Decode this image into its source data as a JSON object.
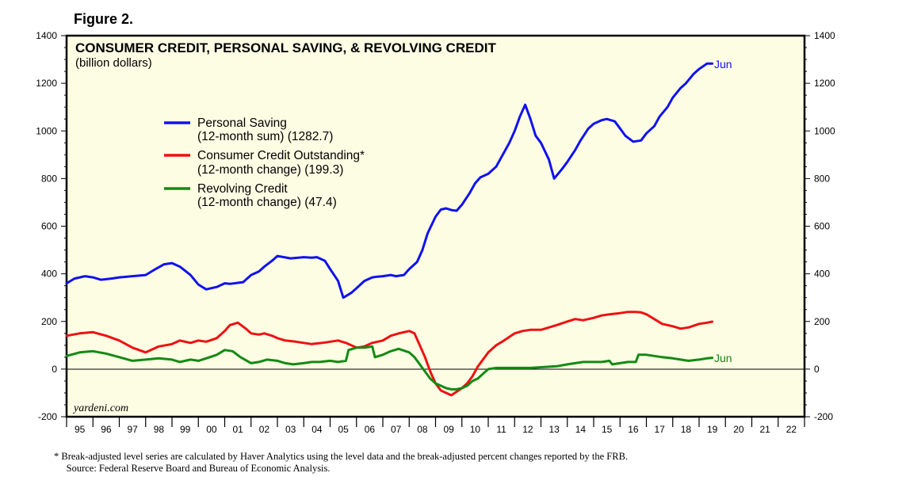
{
  "figure_label": "Figure 2.",
  "footnotes": [
    "*   Break-adjusted level series are calculated by Haver Analytics using the level data and the break-adjusted percent changes reported by the FRB.",
    "     Source: Federal Reserve Board and Bureau of Economic Analysis."
  ],
  "watermark": "yardeni.com",
  "colors": {
    "plot_bg": "#fdfde4",
    "saving": "#1111ee",
    "credit": "#ee1111",
    "revolving": "#138a13"
  },
  "chart_data": {
    "type": "line",
    "title": "CONSUMER CREDIT, PERSONAL SAVING, & REVOLVING CREDIT",
    "subtitle": "(billion dollars)",
    "xlabel": "",
    "ylabel": "",
    "xlim": [
      1995,
      2023
    ],
    "ylim": [
      -200,
      1400
    ],
    "y_ticks": [
      -200,
      0,
      200,
      400,
      600,
      800,
      1000,
      1200,
      1400
    ],
    "x_tick_labels": [
      "95",
      "96",
      "97",
      "98",
      "99",
      "00",
      "01",
      "02",
      "03",
      "04",
      "05",
      "06",
      "07",
      "08",
      "09",
      "10",
      "11",
      "12",
      "13",
      "14",
      "15",
      "16",
      "17",
      "18",
      "19",
      "20",
      "21",
      "22"
    ],
    "zero_line": true,
    "series": [
      {
        "name": "Personal Saving",
        "legend_lines": [
          "Personal Saving",
          "(12-month sum) (1282.7)"
        ],
        "end_label": "Jun",
        "x": [
          1995.0,
          1995.3,
          1995.7,
          1996.0,
          1996.3,
          1996.7,
          1997.0,
          1997.5,
          1998.0,
          1998.3,
          1998.7,
          1999.0,
          1999.3,
          1999.7,
          2000.0,
          2000.3,
          2000.7,
          2001.0,
          2001.2,
          2001.5,
          2001.7,
          2002.0,
          2002.3,
          2002.5,
          2002.8,
          2003.0,
          2003.5,
          2004.0,
          2004.3,
          2004.5,
          2004.8,
          2005.0,
          2005.3,
          2005.5,
          2005.8,
          2006.0,
          2006.3,
          2006.6,
          2006.8,
          2007.0,
          2007.3,
          2007.5,
          2007.8,
          2008.0,
          2008.3,
          2008.5,
          2008.7,
          2009.0,
          2009.2,
          2009.4,
          2009.6,
          2009.8,
          2010.0,
          2010.3,
          2010.5,
          2010.7,
          2011.0,
          2011.3,
          2011.5,
          2011.8,
          2012.0,
          2012.2,
          2012.4,
          2012.6,
          2012.8,
          2013.0,
          2013.3,
          2013.5,
          2013.8,
          2014.0,
          2014.3,
          2014.5,
          2014.8,
          2015.0,
          2015.3,
          2015.5,
          2015.8,
          2016.0,
          2016.2,
          2016.5,
          2016.8,
          2017.0,
          2017.3,
          2017.5,
          2017.8,
          2018.0,
          2018.3,
          2018.5,
          2018.8,
          2019.0,
          2019.3,
          2019.5
        ],
        "values": [
          360,
          380,
          390,
          385,
          375,
          380,
          385,
          390,
          395,
          415,
          440,
          445,
          430,
          395,
          355,
          335,
          345,
          360,
          358,
          362,
          365,
          395,
          410,
          430,
          455,
          475,
          465,
          470,
          468,
          470,
          455,
          420,
          370,
          300,
          320,
          340,
          370,
          385,
          388,
          390,
          395,
          390,
          395,
          420,
          450,
          500,
          570,
          640,
          670,
          675,
          668,
          665,
          690,
          740,
          780,
          805,
          820,
          850,
          890,
          950,
          1000,
          1060,
          1110,
          1050,
          980,
          950,
          880,
          800,
          840,
          870,
          920,
          960,
          1010,
          1030,
          1045,
          1050,
          1040,
          1010,
          980,
          955,
          960,
          990,
          1020,
          1060,
          1100,
          1140,
          1180,
          1200,
          1240,
          1260,
          1282.7,
          1282.7
        ],
        "color": "#1111ee"
      },
      {
        "name": "Consumer Credit Outstanding",
        "legend_lines": [
          "Consumer Credit Outstanding*",
          "(12-month change) (199.3)"
        ],
        "x": [
          1995.0,
          1995.5,
          1996.0,
          1996.5,
          1997.0,
          1997.5,
          1998.0,
          1998.5,
          1999.0,
          1999.3,
          1999.7,
          2000.0,
          2000.3,
          2000.7,
          2001.0,
          2001.2,
          2001.5,
          2001.8,
          2002.0,
          2002.3,
          2002.5,
          2002.8,
          2003.0,
          2003.3,
          2003.7,
          2004.0,
          2004.3,
          2004.7,
          2005.0,
          2005.3,
          2005.6,
          2006.0,
          2006.3,
          2006.6,
          2007.0,
          2007.3,
          2007.6,
          2008.0,
          2008.2,
          2008.4,
          2008.6,
          2008.8,
          2009.0,
          2009.2,
          2009.4,
          2009.6,
          2009.8,
          2010.0,
          2010.2,
          2010.4,
          2010.6,
          2010.8,
          2011.0,
          2011.3,
          2011.6,
          2012.0,
          2012.3,
          2012.6,
          2013.0,
          2013.3,
          2013.6,
          2014.0,
          2014.3,
          2014.6,
          2015.0,
          2015.3,
          2015.6,
          2016.0,
          2016.3,
          2016.6,
          2016.8,
          2017.0,
          2017.3,
          2017.6,
          2018.0,
          2018.3,
          2018.6,
          2019.0,
          2019.3,
          2019.5
        ],
        "values": [
          140,
          150,
          155,
          140,
          120,
          90,
          70,
          95,
          105,
          120,
          110,
          120,
          115,
          130,
          160,
          185,
          195,
          170,
          150,
          145,
          150,
          140,
          130,
          120,
          115,
          110,
          105,
          110,
          115,
          120,
          110,
          90,
          95,
          110,
          120,
          140,
          150,
          160,
          150,
          100,
          50,
          -10,
          -60,
          -90,
          -100,
          -110,
          -95,
          -80,
          -60,
          -30,
          10,
          40,
          70,
          100,
          120,
          150,
          160,
          165,
          165,
          175,
          185,
          200,
          210,
          205,
          215,
          225,
          230,
          235,
          240,
          240,
          238,
          230,
          210,
          190,
          180,
          170,
          175,
          190,
          195,
          199.3
        ],
        "color": "#ee1111"
      },
      {
        "name": "Revolving Credit",
        "legend_lines": [
          "Revolving Credit",
          "(12-month change) (47.4)"
        ],
        "end_label": "Jun",
        "x": [
          1995.0,
          1995.5,
          1996.0,
          1996.5,
          1997.0,
          1997.5,
          1998.0,
          1998.5,
          1999.0,
          1999.3,
          1999.7,
          2000.0,
          2000.3,
          2000.7,
          2001.0,
          2001.3,
          2001.6,
          2002.0,
          2002.3,
          2002.6,
          2003.0,
          2003.3,
          2003.6,
          2004.0,
          2004.3,
          2004.6,
          2005.0,
          2005.3,
          2005.6,
          2005.7,
          2006.0,
          2006.3,
          2006.6,
          2006.7,
          2007.0,
          2007.3,
          2007.6,
          2008.0,
          2008.2,
          2008.4,
          2008.6,
          2008.8,
          2009.0,
          2009.2,
          2009.4,
          2009.6,
          2009.8,
          2010.0,
          2010.2,
          2010.4,
          2010.6,
          2010.8,
          2011.0,
          2011.3,
          2011.6,
          2012.0,
          2012.3,
          2012.6,
          2013.0,
          2013.3,
          2013.6,
          2014.0,
          2014.3,
          2014.6,
          2015.0,
          2015.3,
          2015.6,
          2015.7,
          2016.0,
          2016.3,
          2016.6,
          2016.7,
          2017.0,
          2017.3,
          2017.6,
          2018.0,
          2018.3,
          2018.6,
          2019.0,
          2019.3,
          2019.5
        ],
        "values": [
          55,
          70,
          75,
          65,
          50,
          35,
          40,
          45,
          40,
          30,
          40,
          35,
          45,
          60,
          80,
          75,
          50,
          25,
          30,
          40,
          35,
          25,
          20,
          25,
          30,
          30,
          35,
          30,
          35,
          80,
          90,
          90,
          95,
          50,
          60,
          75,
          85,
          70,
          50,
          20,
          -10,
          -40,
          -60,
          -70,
          -80,
          -85,
          -85,
          -80,
          -70,
          -50,
          -40,
          -20,
          0,
          5,
          5,
          5,
          5,
          5,
          8,
          10,
          12,
          20,
          25,
          30,
          30,
          30,
          35,
          20,
          25,
          30,
          30,
          60,
          60,
          55,
          50,
          45,
          40,
          35,
          40,
          45,
          47.4
        ],
        "color": "#138a13"
      }
    ]
  }
}
